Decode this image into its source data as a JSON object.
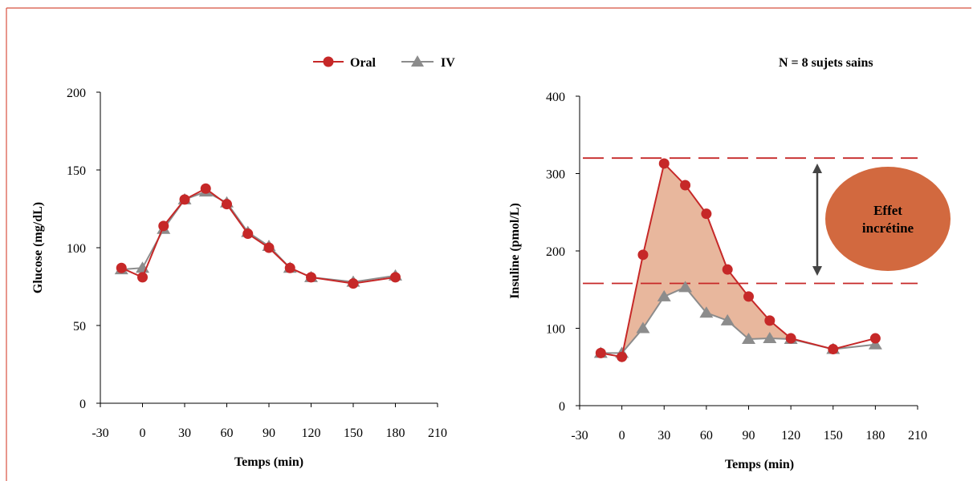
{
  "colors": {
    "oral": "#c62828",
    "iv": "#8c8c8c",
    "fill": "#e8b79d",
    "ellipse": "#d2693f",
    "border": "#d8503f",
    "arrow": "#444444"
  },
  "legend": {
    "oral_label": "Oral",
    "iv_label": "IV"
  },
  "note": "N = 8 sujets sains",
  "annotation": {
    "line1": "Effet",
    "line2": "incrétine"
  },
  "chart_data": [
    {
      "type": "line",
      "xlabel": "Temps (min)",
      "ylabel": "Glucose (mg/dL)",
      "xlim": [
        -30,
        210
      ],
      "ylim": [
        0,
        200
      ],
      "xticks": [
        -30,
        0,
        30,
        60,
        90,
        120,
        150,
        180,
        210
      ],
      "yticks": [
        0,
        50,
        100,
        150,
        200
      ],
      "grid": false,
      "series": [
        {
          "name": "Oral",
          "marker": "circle",
          "x": [
            -15,
            0,
            15,
            30,
            45,
            60,
            75,
            90,
            105,
            120,
            150,
            180
          ],
          "y": [
            87,
            81,
            114,
            131,
            138,
            128,
            109,
            100,
            87,
            81,
            77,
            81
          ]
        },
        {
          "name": "IV",
          "marker": "triangle",
          "x": [
            -15,
            0,
            15,
            30,
            45,
            60,
            75,
            90,
            105,
            120,
            150,
            180
          ],
          "y": [
            86,
            87,
            112,
            131,
            136,
            129,
            110,
            101,
            87,
            81,
            78,
            82
          ]
        }
      ]
    },
    {
      "type": "line",
      "xlabel": "Temps (min)",
      "ylabel": "Insuline (pmol/L)",
      "xlim": [
        -30,
        210
      ],
      "ylim": [
        0,
        400
      ],
      "xticks": [
        -30,
        0,
        30,
        60,
        90,
        120,
        150,
        180,
        210
      ],
      "yticks": [
        0,
        100,
        200,
        300,
        400
      ],
      "grid": false,
      "reference_lines_y": [
        320,
        158
      ],
      "series": [
        {
          "name": "Oral",
          "marker": "circle",
          "x": [
            -15,
            0,
            15,
            30,
            45,
            60,
            75,
            90,
            105,
            120,
            150,
            180
          ],
          "y": [
            68,
            63,
            195,
            313,
            285,
            248,
            176,
            141,
            110,
            87,
            73,
            87
          ]
        },
        {
          "name": "IV",
          "marker": "triangle",
          "x": [
            -15,
            0,
            15,
            30,
            45,
            60,
            75,
            90,
            105,
            120,
            150,
            180
          ],
          "y": [
            68,
            68,
            100,
            141,
            153,
            120,
            110,
            86,
            87,
            86,
            73,
            79
          ]
        }
      ]
    }
  ]
}
